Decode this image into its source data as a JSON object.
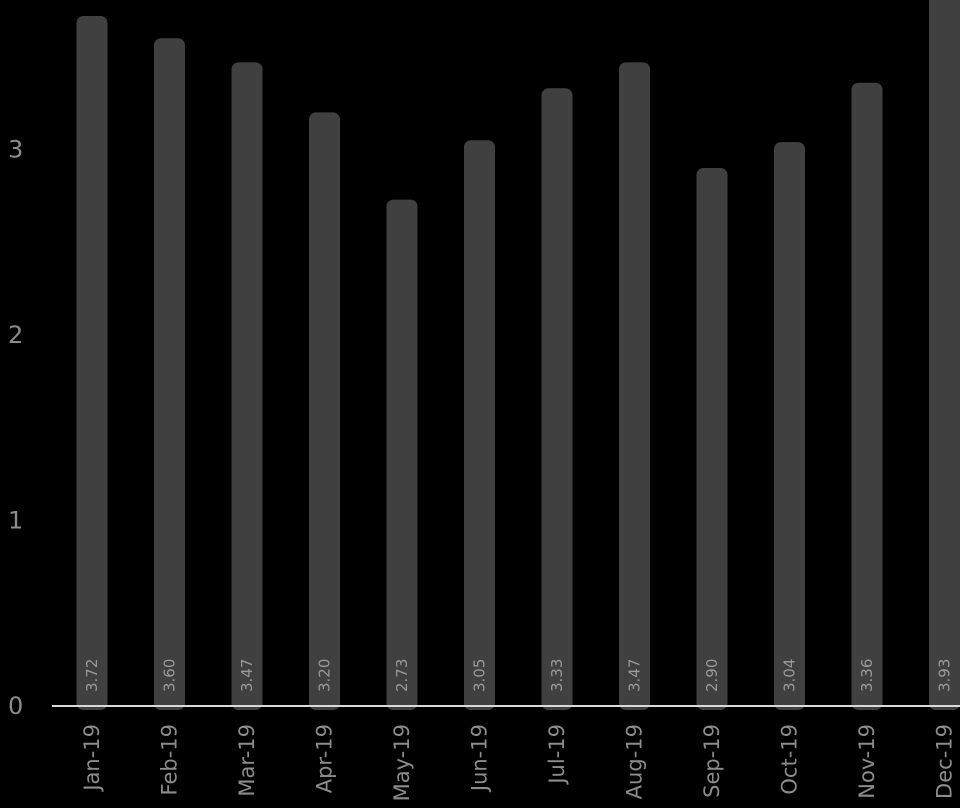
{
  "chart_data": {
    "type": "bar",
    "categories": [
      "Jan-19",
      "Feb-19",
      "Mar-19",
      "Apr-19",
      "May-19",
      "Jun-19",
      "Jul-19",
      "Aug-19",
      "Sep-19",
      "Oct-19",
      "Nov-19",
      "Dec-19"
    ],
    "values": [
      3.72,
      3.6,
      3.47,
      3.2,
      2.73,
      3.05,
      3.33,
      3.47,
      2.9,
      3.04,
      3.36,
      3.93
    ],
    "data_labels": [
      "3.72",
      "3.60",
      "3.47",
      "3.20",
      "2.73",
      "3.05",
      "3.33",
      "3.47",
      "2.90",
      "3.04",
      "3.36",
      "3.93"
    ],
    "y_ticks": [
      "0",
      "1",
      "2",
      "3"
    ],
    "ylim": [
      0,
      3.8
    ],
    "title": "",
    "xlabel": "",
    "ylabel": "",
    "grid": false,
    "colors": {
      "background": "#000000",
      "bar": "#404040",
      "axis": "#d9d9d9",
      "text": "#8c8c8c"
    }
  }
}
